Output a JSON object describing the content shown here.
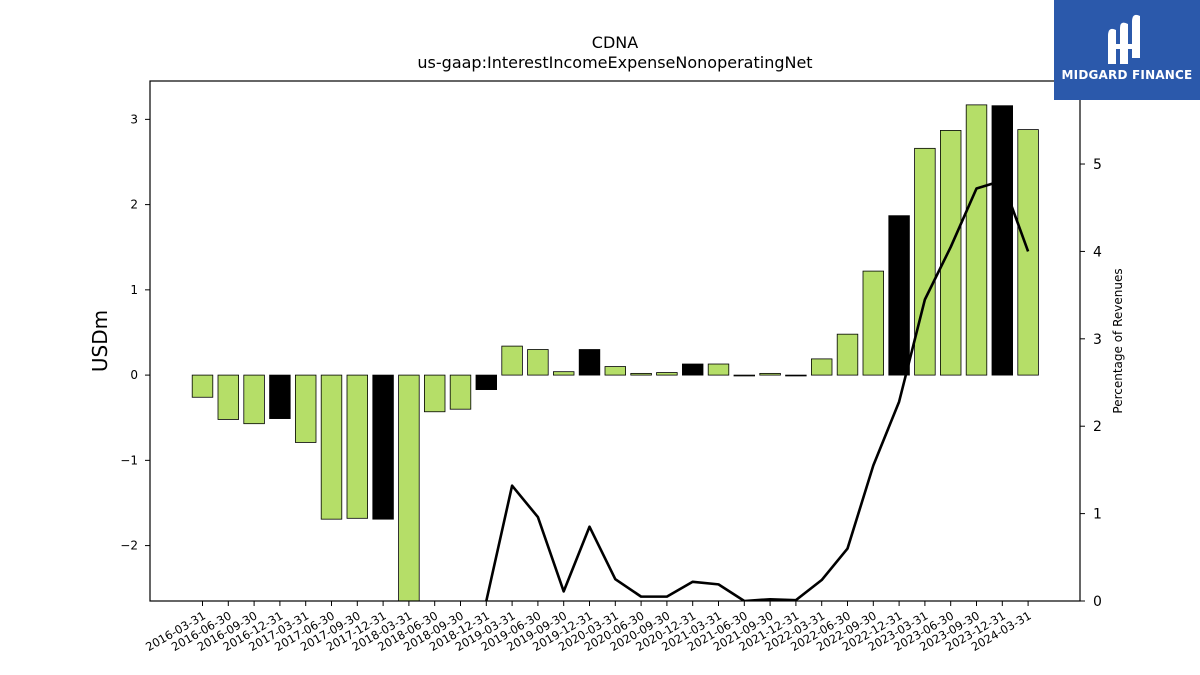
{
  "chart_data": {
    "type": "bar",
    "title": "CDNA",
    "subtitle": "us-gaap:InterestIncomeExpenseNonoperatingNet",
    "ylabel": "USDm",
    "y2label": "Percentage of Revenues",
    "ylim": [
      -2.65,
      3.45
    ],
    "y2lim": [
      0,
      5.95
    ],
    "yticks": [
      -2,
      -1,
      0,
      1,
      2,
      3
    ],
    "y2ticks": [
      0,
      1,
      2,
      3,
      4,
      5
    ],
    "categories": [
      "2016-03-31",
      "2016-06-30",
      "2016-09-30",
      "2016-12-31",
      "2017-03-31",
      "2017-06-30",
      "2017-09-30",
      "2017-12-31",
      "2018-03-31",
      "2018-06-30",
      "2018-09-30",
      "2018-12-31",
      "2019-03-31",
      "2019-06-30",
      "2019-09-30",
      "2019-12-31",
      "2020-03-31",
      "2020-06-30",
      "2020-09-30",
      "2020-12-31",
      "2021-03-31",
      "2021-06-30",
      "2021-09-30",
      "2021-12-31",
      "2022-03-31",
      "2022-06-30",
      "2022-09-30",
      "2022-12-31",
      "2023-03-31",
      "2023-06-30",
      "2023-09-30",
      "2023-12-31",
      "2024-03-31"
    ],
    "series": [
      {
        "values": [
          -0.26,
          -0.52,
          -0.57,
          -0.51,
          -0.79,
          -1.69,
          -1.68,
          -1.69,
          -2.65,
          -0.43,
          -0.4,
          -0.17,
          0.34,
          0.3,
          0.04,
          0.3,
          0.1,
          0.02,
          0.03,
          0.13,
          0.13,
          -0.01,
          0.02,
          -0.01,
          0.19,
          0.48,
          1.22,
          1.87,
          2.66,
          2.87,
          3.17,
          3.16,
          2.88
        ],
        "year_end": [
          false,
          false,
          false,
          true,
          false,
          false,
          false,
          true,
          false,
          false,
          false,
          true,
          false,
          false,
          false,
          true,
          false,
          false,
          false,
          true,
          false,
          false,
          false,
          true,
          false,
          false,
          false,
          true,
          false,
          false,
          false,
          true,
          false
        ]
      },
      {
        "type": "line",
        "axis": "right",
        "values": [
          null,
          null,
          null,
          null,
          null,
          null,
          null,
          null,
          null,
          null,
          null,
          0.0,
          1.32,
          0.96,
          0.11,
          0.85,
          0.25,
          0.05,
          0.05,
          0.22,
          0.19,
          0.0,
          0.02,
          0.01,
          0.24,
          0.6,
          1.55,
          2.28,
          3.45,
          4.05,
          4.72,
          4.81,
          4.0
        ]
      }
    ],
    "colors": {
      "bar": "#b5de68",
      "bar_year_end": "#000000",
      "line": "#000000"
    }
  },
  "logo": {
    "text": "MIDGARD FINANCE"
  }
}
